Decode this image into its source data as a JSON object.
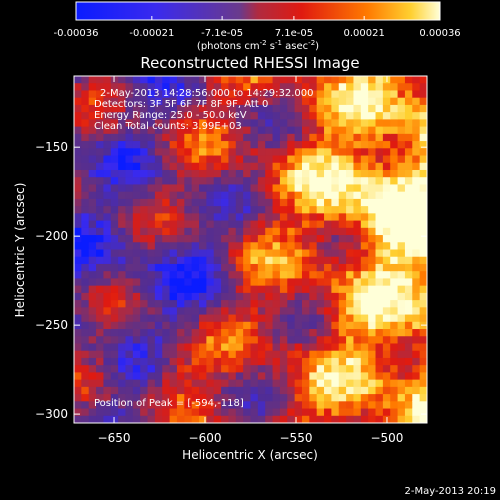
{
  "chart_data": {
    "type": "heatmap",
    "title": "Reconstructed RHESSI Image",
    "xlabel": "Heliocentric X (arcsec)",
    "ylabel": "Heliocentric Y (arcsec)",
    "xlim": [
      -672,
      -478
    ],
    "ylim": [
      -305,
      -110
    ],
    "xticks": [
      -650,
      -600,
      -550,
      -500
    ],
    "yticks": [
      -150,
      -200,
      -250,
      -300
    ],
    "colorbar": {
      "ticks": [
        -0.00036,
        -0.00021,
        -7.1e-05,
        7.1e-05,
        0.00021,
        0.00036
      ],
      "tick_labels": [
        "-0.00036",
        "-0.00021",
        "-7.1e-05",
        "7.1e-05",
        "0.00021",
        "0.00036"
      ],
      "unit_label": "(photons cm-2 s-1 asec-2)",
      "range": [
        -0.00036,
        0.00036
      ]
    },
    "annotations": [
      "2-May-2013 14:28:56.000 to 14:29:32.000",
      "Detectors: 3F 5F 6F 7F 8F 9F, Att 0",
      "Energy Range: 25.0 - 50.0 keV",
      "Clean    Total counts: 3.99E+03"
    ],
    "peak_position_label": "Position of Peak = [-594,-118]",
    "peak_position": [
      -594,
      -118
    ],
    "timestamp": "2-May-2013 20:19"
  }
}
